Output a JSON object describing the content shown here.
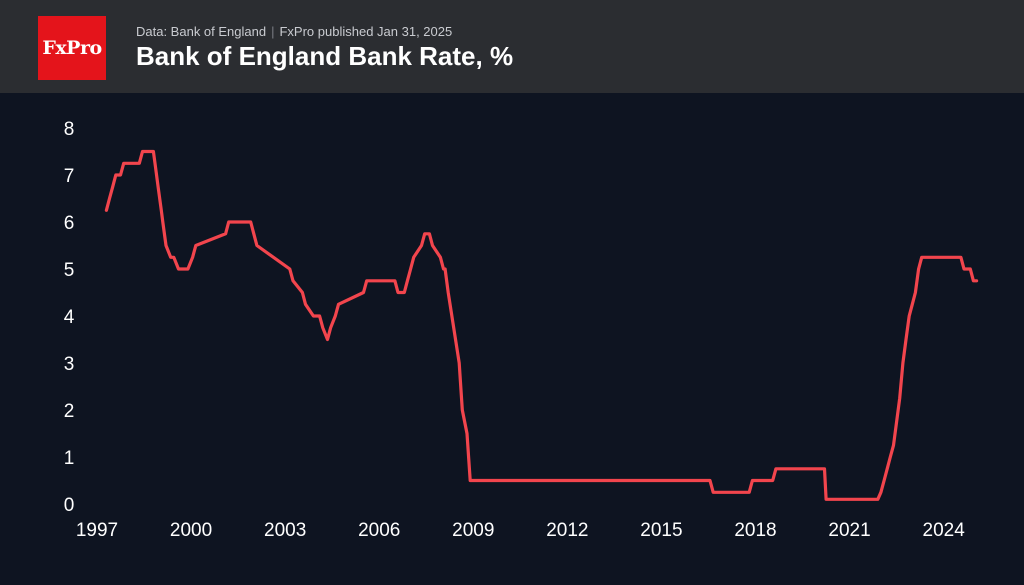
{
  "header": {
    "logo_text": "FxPro",
    "source": "Data: Bank of England",
    "published": "FxPro published Jan 31, 2025",
    "separator": "|",
    "title": "Bank of England Bank Rate, %"
  },
  "colors": {
    "background": "#0e1421",
    "header_bg": "#2b2d31",
    "logo_bg": "#e4141b",
    "line": "#f2454d",
    "text": "#ffffff"
  },
  "chart_data": {
    "type": "line",
    "title": "Bank of England Bank Rate, %",
    "xlabel": "",
    "ylabel": "",
    "xlim": [
      1997.0,
      2025.0
    ],
    "ylim": [
      0,
      8
    ],
    "y_ticks": [
      "0",
      "1",
      "2",
      "3",
      "4",
      "5",
      "6",
      "7",
      "8"
    ],
    "x_ticks": [
      "1997",
      "2000",
      "2003",
      "2006",
      "2009",
      "2012",
      "2015",
      "2018",
      "2021",
      "2024"
    ],
    "grid": false,
    "legend": "none",
    "series": [
      {
        "name": "Bank Rate",
        "x": [
          1997.3,
          1997.4,
          1997.5,
          1997.6,
          1997.75,
          1997.85,
          1998.35,
          1998.45,
          1998.8,
          1998.85,
          1998.95,
          1999.05,
          1999.1,
          1999.2,
          1999.35,
          1999.45,
          1999.6,
          1999.7,
          1999.85,
          1999.9,
          2000.05,
          2000.15,
          2001.1,
          2001.2,
          2001.35,
          2001.45,
          2001.6,
          2001.7,
          2001.8,
          2001.9,
          2002.0,
          2002.1,
          2003.15,
          2003.25,
          2003.55,
          2003.65,
          2003.9,
          2004.0,
          2004.1,
          2004.2,
          2004.35,
          2004.45,
          2004.6,
          2004.7,
          2005.5,
          2005.6,
          2006.5,
          2006.6,
          2006.8,
          2006.9,
          2007.0,
          2007.1,
          2007.35,
          2007.45,
          2007.6,
          2007.7,
          2007.95,
          2008.05,
          2008.1,
          2008.2,
          2008.55,
          2008.65,
          2008.8,
          2008.85,
          2008.9,
          2008.95,
          2009.05,
          2009.15,
          2016.55,
          2016.65,
          2017.8,
          2017.9,
          2018.55,
          2018.65,
          2019.75,
          2020.2,
          2020.25,
          2021.9,
          2022.0,
          2022.1,
          2022.2,
          2022.3,
          2022.4,
          2022.5,
          2022.6,
          2022.7,
          2022.8,
          2022.9,
          2023.0,
          2023.1,
          2023.2,
          2023.3,
          2023.45,
          2023.55,
          2024.55,
          2024.65,
          2024.85,
          2024.95,
          2025.05
        ],
        "values": [
          6.25,
          6.5,
          6.75,
          7.0,
          7.0,
          7.25,
          7.25,
          7.5,
          7.5,
          7.25,
          6.75,
          6.25,
          6.0,
          5.5,
          5.25,
          5.25,
          5.0,
          5.0,
          5.0,
          5.0,
          5.25,
          5.5,
          5.75,
          6.0,
          6.0,
          6.0,
          6.0,
          6.0,
          6.0,
          6.0,
          5.75,
          5.5,
          5.0,
          4.75,
          4.5,
          4.25,
          4.0,
          4.0,
          4.0,
          3.75,
          3.5,
          3.75,
          4.0,
          4.25,
          4.5,
          4.75,
          4.75,
          4.5,
          4.5,
          4.75,
          5.0,
          5.25,
          5.5,
          5.75,
          5.75,
          5.5,
          5.25,
          5.0,
          5.0,
          4.5,
          3.0,
          2.0,
          1.5,
          1.0,
          0.5,
          0.5,
          0.5,
          0.5,
          0.5,
          0.25,
          0.25,
          0.5,
          0.5,
          0.75,
          0.75,
          0.75,
          0.1,
          0.1,
          0.25,
          0.5,
          0.75,
          1.0,
          1.25,
          1.75,
          2.25,
          3.0,
          3.5,
          4.0,
          4.25,
          4.5,
          5.0,
          5.25,
          5.25,
          5.25,
          5.25,
          5.0,
          5.0,
          4.75,
          4.75
        ]
      }
    ]
  }
}
